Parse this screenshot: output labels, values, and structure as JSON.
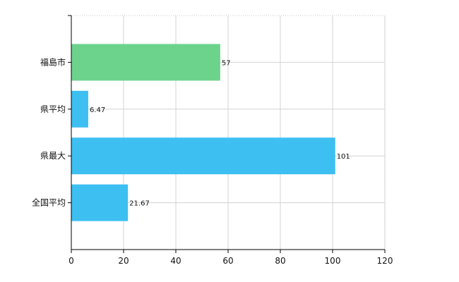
{
  "chart_data": {
    "type": "bar",
    "orientation": "horizontal",
    "categories": [
      "福島市",
      "県平均",
      "県最大",
      "全国平均"
    ],
    "values": [
      57,
      6.47,
      101,
      21.67
    ],
    "value_labels": [
      "57",
      "6.47",
      "101",
      "21.67"
    ],
    "bar_colors": [
      "#6cd38d",
      "#3dbff2",
      "#3dbff2",
      "#3dbff2"
    ],
    "xlim": [
      0,
      120
    ],
    "x_ticks": [
      0,
      20,
      40,
      60,
      80,
      100,
      120
    ],
    "grid": true,
    "title": "",
    "xlabel": "",
    "ylabel": ""
  }
}
